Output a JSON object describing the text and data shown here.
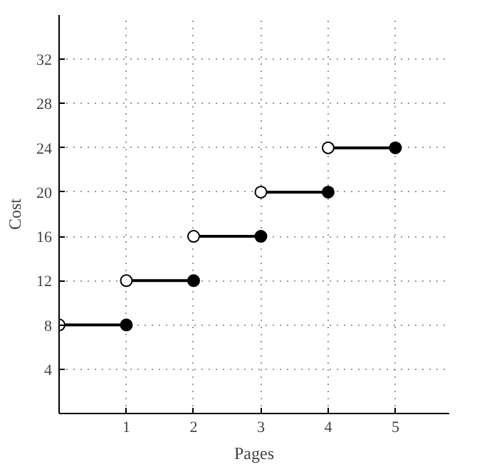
{
  "chart_data": {
    "type": "line",
    "xlabel": "Pages",
    "ylabel": "Cost",
    "xlim": [
      0,
      5.8
    ],
    "ylim": [
      0,
      36
    ],
    "xticks": [
      1,
      2,
      3,
      4,
      5
    ],
    "yticks": [
      4,
      8,
      12,
      16,
      20,
      24,
      28,
      32
    ],
    "grid": true,
    "marker": "circle",
    "series": [
      {
        "color": "#000000",
        "x": [
          0,
          1
        ],
        "values": [
          8,
          8
        ]
      },
      {
        "color": "#000000",
        "x": [
          1,
          2
        ],
        "values": [
          12,
          12
        ]
      },
      {
        "color": "#000000",
        "x": [
          2,
          3
        ],
        "values": [
          16,
          16
        ]
      },
      {
        "color": "#000000",
        "x": [
          3,
          4
        ],
        "values": [
          20,
          20
        ]
      },
      {
        "color": "#000000",
        "x": [
          4,
          5
        ],
        "values": [
          24,
          24
        ]
      }
    ]
  }
}
